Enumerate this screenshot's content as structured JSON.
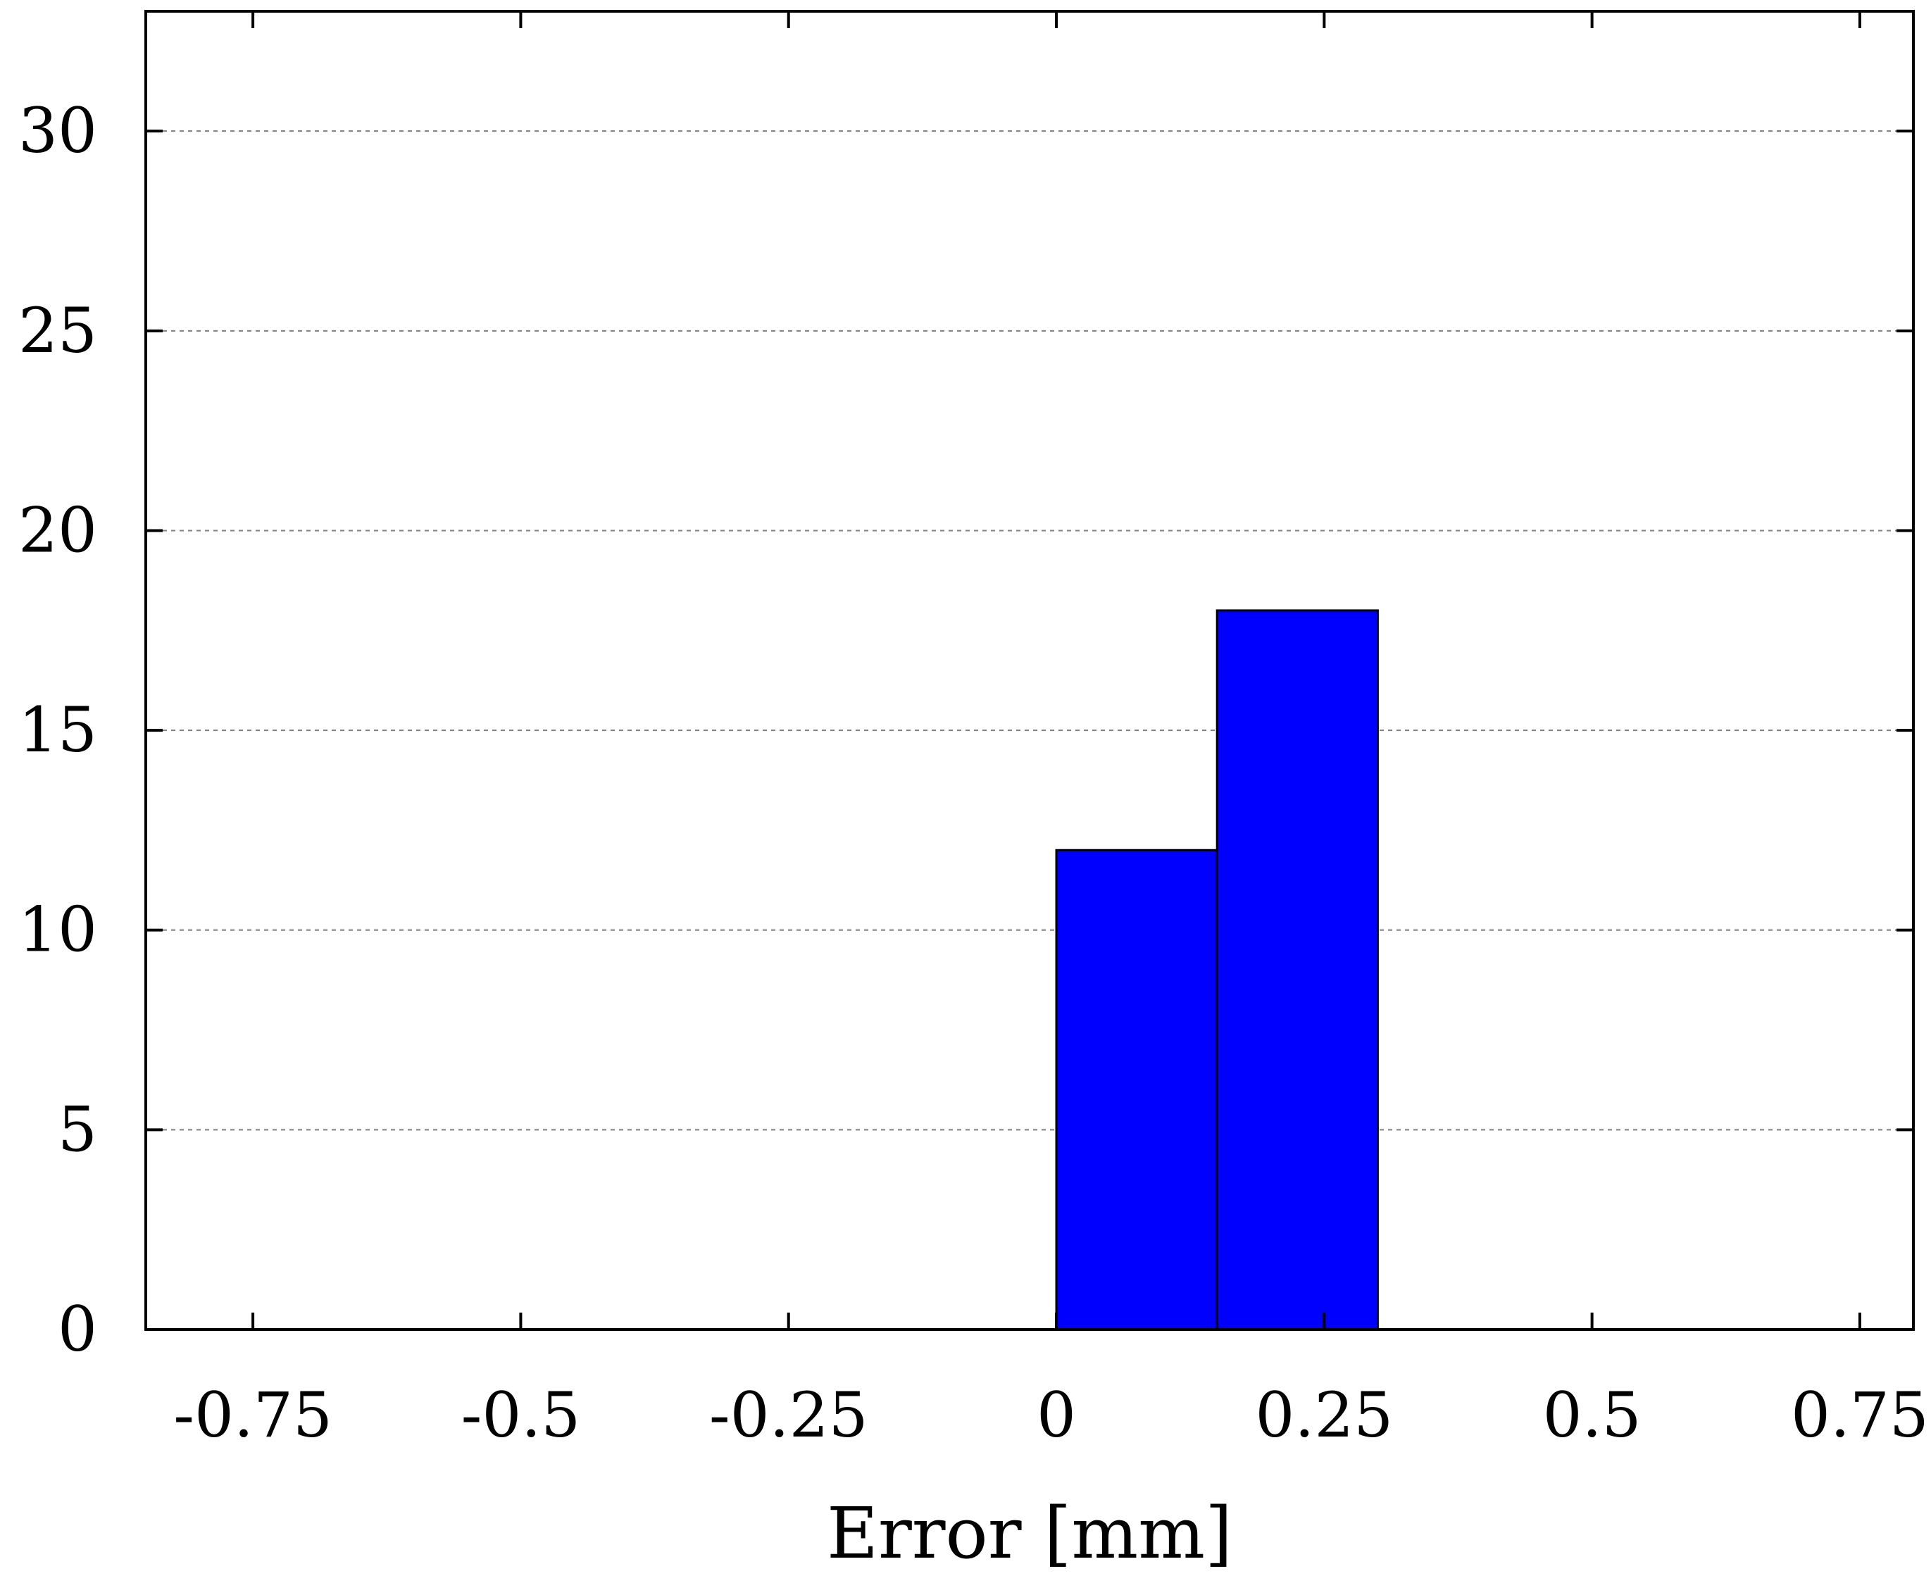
{
  "chart_data": {
    "type": "bar",
    "title": "",
    "xlabel": "Error [mm]",
    "ylabel": "",
    "xlim": [
      -0.85,
      0.8
    ],
    "ylim": [
      0,
      33
    ],
    "xticks": [
      -0.75,
      -0.5,
      -0.25,
      0,
      0.25,
      0.5,
      0.75
    ],
    "xtick_labels": [
      "-0.75",
      "-0.5",
      "-0.25",
      "0",
      "0.25",
      "0.5",
      "0.75"
    ],
    "yticks": [
      0,
      5,
      10,
      15,
      20,
      25,
      30
    ],
    "ytick_labels": [
      "0",
      "5",
      "10",
      "15",
      "20",
      "25",
      "30"
    ],
    "grid": {
      "y": true,
      "x": false,
      "style": "dashed"
    },
    "bin_edges": [
      0,
      0.15,
      0.3
    ],
    "values": [
      12,
      18
    ],
    "bar_color": "#0000ff",
    "bar_edge_color": "#000000"
  }
}
